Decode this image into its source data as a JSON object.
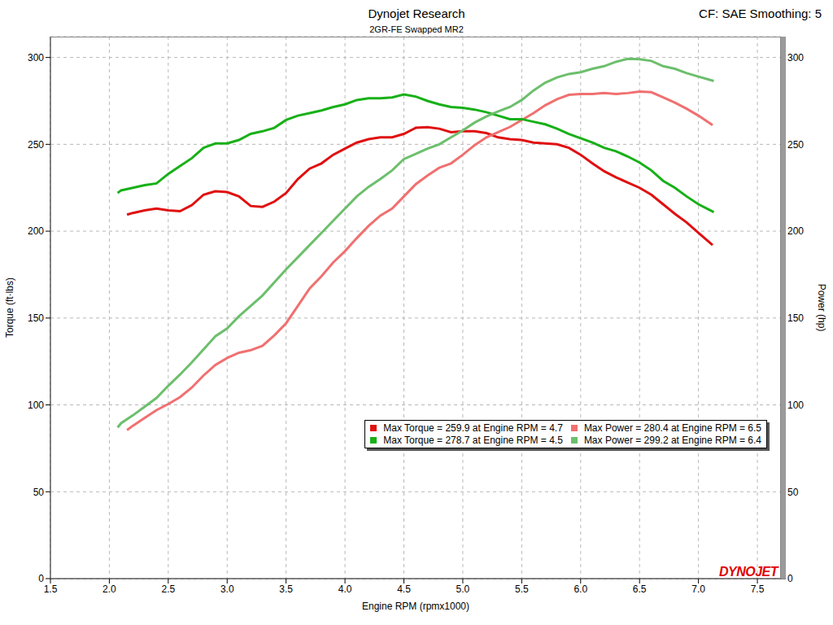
{
  "chart_data": {
    "type": "line",
    "title": "Dynojet Research",
    "subtitle": "2GR-FE Swapped MR2",
    "annotations": [
      {
        "text": "CF: SAE Smoothing: 5"
      },
      {
        "text": "DYNOJET"
      }
    ],
    "x_label": "Engine RPM (rpmx1000)",
    "y_label": "Torque (ft·lbs)",
    "y2_label": "Power (hp)",
    "xlim": [
      1.5,
      7.7
    ],
    "xticks": [
      1.5,
      {
        "value": 2,
        "label": "2.0"
      },
      2.5,
      {
        "value": 3,
        "label": "3.0"
      },
      3.5,
      {
        "value": 4,
        "label": "4.0"
      },
      4.5,
      {
        "value": 5,
        "label": "5.0"
      },
      5.5,
      {
        "value": 6,
        "label": "6.0"
      },
      6.5,
      {
        "value": 7,
        "label": "7.0"
      },
      7.5
    ],
    "ylim": [
      0,
      312
    ],
    "yticks": [
      0,
      50,
      100,
      150,
      200,
      250,
      300
    ],
    "y2lim": [
      0,
      312
    ],
    "y2ticks": [
      0,
      50,
      100,
      150,
      200,
      250,
      300
    ],
    "grid": true,
    "legend": "lower right",
    "series": [
      {
        "name": "Max Torque = 259.9 at Engine RPM = 4.7",
        "color": "#e01010",
        "x": [
          2.15,
          2.2,
          2.3,
          2.4,
          2.5,
          2.6,
          2.7,
          2.8,
          2.9,
          3.0,
          3.1,
          3.2,
          3.3,
          3.4,
          3.5,
          3.6,
          3.7,
          3.8,
          3.9,
          4.0,
          4.1,
          4.2,
          4.3,
          4.4,
          4.5,
          4.6,
          4.7,
          4.8,
          4.9,
          5.0,
          5.1,
          5.2,
          5.3,
          5.4,
          5.5,
          5.6,
          5.7,
          5.8,
          5.9,
          6.0,
          6.1,
          6.2,
          6.3,
          6.4,
          6.5,
          6.6,
          6.7,
          6.8,
          6.9,
          7.0,
          7.12
        ],
        "values": [
          209.5,
          210.5,
          212,
          213,
          212,
          211.5,
          215,
          221,
          223,
          222.5,
          220,
          214.5,
          214,
          217,
          222,
          230,
          236,
          239,
          244,
          247.5,
          251,
          253,
          254,
          254,
          256,
          259.5,
          259.9,
          259,
          257,
          257.5,
          257.5,
          256.5,
          254,
          253,
          252.5,
          251,
          250.5,
          250,
          248,
          244,
          239,
          234.5,
          231,
          228,
          225,
          221,
          215.5,
          210,
          205,
          199,
          192
        ]
      },
      {
        "name": "Max Power = 280.4 at Engine RPM = 6.5",
        "color": "#f07070",
        "axis": "y2",
        "x": [
          2.15,
          2.2,
          2.3,
          2.4,
          2.5,
          2.6,
          2.7,
          2.8,
          2.9,
          3.0,
          3.1,
          3.2,
          3.3,
          3.4,
          3.5,
          3.6,
          3.7,
          3.8,
          3.9,
          4.0,
          4.1,
          4.2,
          4.3,
          4.4,
          4.5,
          4.6,
          4.7,
          4.8,
          4.9,
          5.0,
          5.1,
          5.2,
          5.3,
          5.4,
          5.5,
          5.6,
          5.7,
          5.8,
          5.9,
          6.0,
          6.1,
          6.2,
          6.3,
          6.4,
          6.5,
          6.6,
          6.7,
          6.8,
          6.9,
          7.0,
          7.12
        ],
        "values": [
          85.5,
          88,
          92.5,
          97,
          100.5,
          104.5,
          110,
          117,
          123,
          127,
          130,
          131.5,
          134,
          140,
          147,
          157,
          167,
          174,
          182,
          188.5,
          196,
          203,
          209,
          213,
          220,
          227,
          232,
          236.5,
          239,
          244,
          249.5,
          254,
          257,
          260,
          264,
          268,
          272.5,
          276,
          278.5,
          279,
          279,
          279.5,
          279,
          279.5,
          280.4,
          280,
          277,
          274,
          270.5,
          266.5,
          261
        ]
      },
      {
        "name": "Max Torque = 278.7 at Engine RPM = 4.5",
        "color": "#18b018",
        "x": [
          2.07,
          2.1,
          2.2,
          2.3,
          2.4,
          2.5,
          2.6,
          2.7,
          2.8,
          2.9,
          3.0,
          3.1,
          3.2,
          3.3,
          3.4,
          3.5,
          3.6,
          3.7,
          3.8,
          3.9,
          4.0,
          4.1,
          4.2,
          4.3,
          4.4,
          4.5,
          4.6,
          4.7,
          4.8,
          4.9,
          5.0,
          5.1,
          5.2,
          5.3,
          5.4,
          5.5,
          5.6,
          5.7,
          5.8,
          5.9,
          6.0,
          6.1,
          6.2,
          6.3,
          6.4,
          6.5,
          6.6,
          6.7,
          6.8,
          6.9,
          7.0,
          7.13
        ],
        "values": [
          222,
          223.5,
          225,
          226.5,
          227.5,
          233,
          237.5,
          242,
          248,
          250.5,
          250.5,
          252.5,
          256,
          257.5,
          259.5,
          264,
          266.5,
          268,
          269.5,
          271.5,
          273,
          275.5,
          276.5,
          276.5,
          277,
          278.7,
          277.5,
          275,
          273,
          271.5,
          271,
          270,
          268.5,
          266.5,
          264.5,
          264.5,
          263,
          261.5,
          259,
          256,
          253.5,
          251,
          248,
          246,
          243,
          239.5,
          235,
          229,
          225,
          220,
          215.5,
          211
        ]
      },
      {
        "name": "Max Power = 299.2 at Engine RPM = 6.4",
        "color": "#6cbf6c",
        "axis": "y2",
        "x": [
          2.07,
          2.1,
          2.2,
          2.3,
          2.4,
          2.5,
          2.6,
          2.7,
          2.8,
          2.9,
          3.0,
          3.1,
          3.2,
          3.3,
          3.4,
          3.5,
          3.6,
          3.7,
          3.8,
          3.9,
          4.0,
          4.1,
          4.2,
          4.3,
          4.4,
          4.5,
          4.6,
          4.7,
          4.8,
          4.9,
          5.0,
          5.1,
          5.2,
          5.3,
          5.4,
          5.5,
          5.6,
          5.7,
          5.8,
          5.9,
          6.0,
          6.1,
          6.2,
          6.3,
          6.4,
          6.5,
          6.6,
          6.7,
          6.8,
          6.9,
          7.0,
          7.13
        ],
        "values": [
          87,
          89.5,
          94,
          99,
          104,
          111,
          117.5,
          124.5,
          132,
          139.5,
          144,
          151,
          157,
          163,
          170.5,
          178,
          185,
          192,
          199,
          206,
          213,
          220,
          225.5,
          230,
          235,
          241.5,
          244.5,
          247.5,
          250,
          254,
          258,
          262.5,
          266,
          269,
          271.5,
          275.5,
          281,
          285.5,
          288.5,
          290.5,
          291.5,
          293.5,
          295,
          297.5,
          299.2,
          299,
          298,
          295,
          293.5,
          291,
          289,
          286.5
        ]
      }
    ]
  }
}
